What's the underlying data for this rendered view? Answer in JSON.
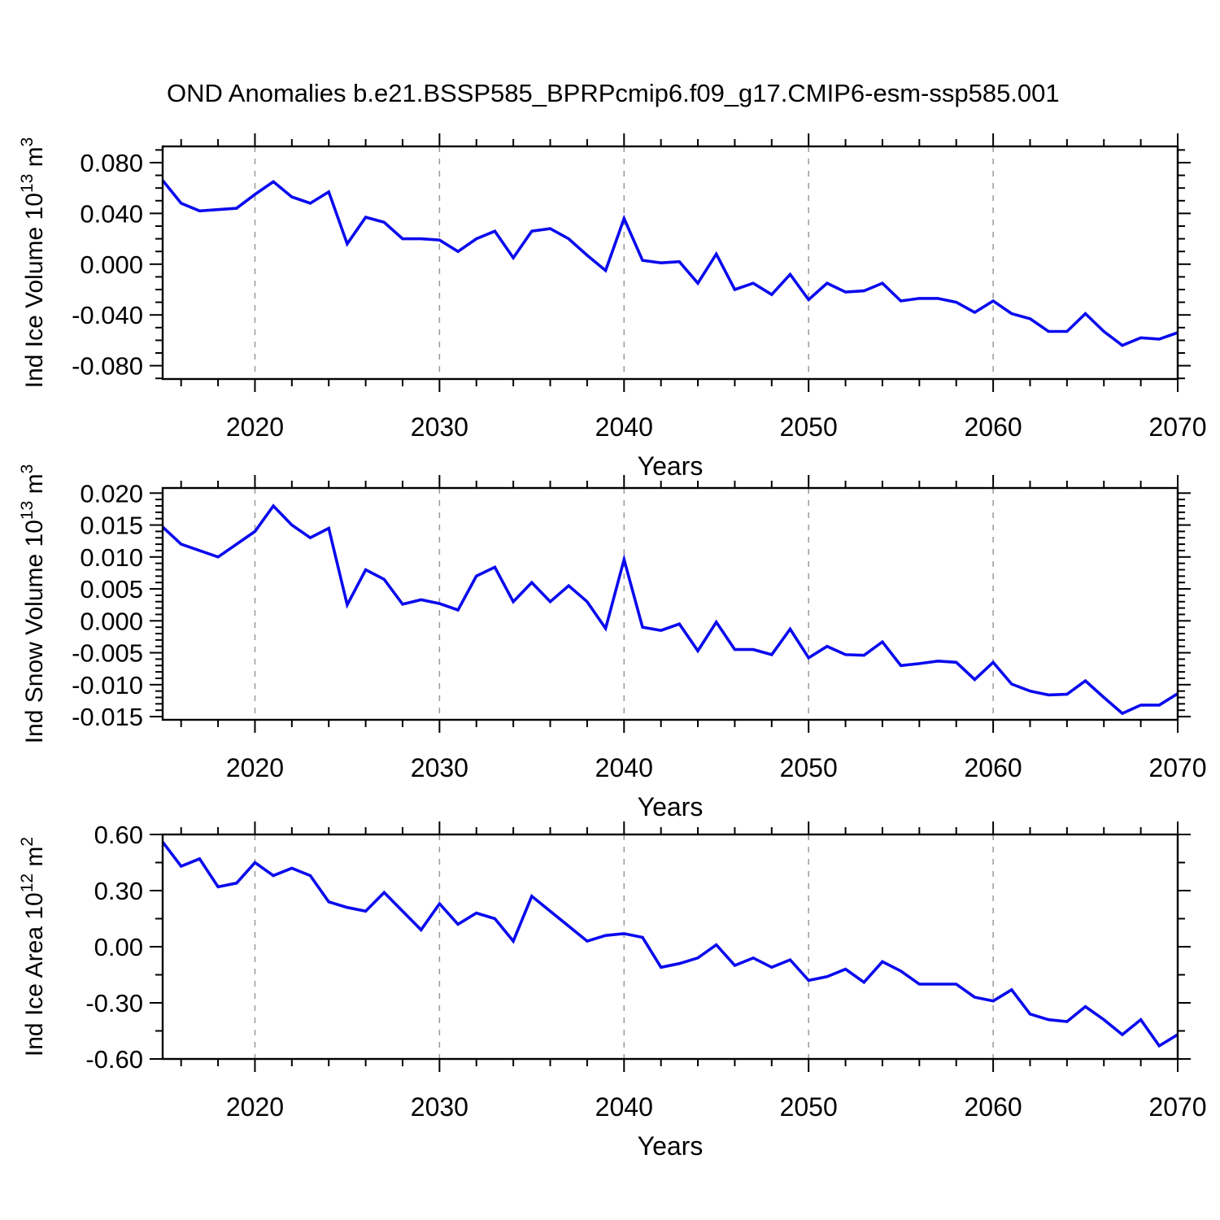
{
  "title": "OND Anomalies b.e21.BSSP585_BPRPcmip6.f09_g17.CMIP6-esm-ssp585.001",
  "colors": {
    "line": "#0a0aee",
    "grid": "#999999",
    "axis": "#000000",
    "background": "#ffffff"
  },
  "x_axis": {
    "label": "Years",
    "start": 2015,
    "end": 2070,
    "major_ticks": [
      2020,
      2030,
      2040,
      2050,
      2060,
      2070
    ],
    "minor_step_years": 2,
    "gridline_years": [
      2020,
      2030,
      2040,
      2050,
      2060
    ]
  },
  "years": [
    2015,
    2016,
    2017,
    2018,
    2019,
    2020,
    2021,
    2022,
    2023,
    2024,
    2025,
    2026,
    2027,
    2028,
    2029,
    2030,
    2031,
    2032,
    2033,
    2034,
    2035,
    2036,
    2037,
    2038,
    2039,
    2040,
    2041,
    2042,
    2043,
    2044,
    2045,
    2046,
    2047,
    2048,
    2049,
    2050,
    2051,
    2052,
    2053,
    2054,
    2055,
    2056,
    2057,
    2058,
    2059,
    2060,
    2061,
    2062,
    2063,
    2064,
    2065,
    2066,
    2067,
    2068,
    2069,
    2070
  ],
  "chart_data": [
    {
      "type": "line",
      "name": "ind-ice-volume",
      "ylabel_parts": [
        [
          "Ind Ice Volume 10",
          false
        ],
        [
          "13",
          true
        ],
        [
          " m",
          false
        ],
        [
          "3",
          true
        ]
      ],
      "xlabel": "Years",
      "ylim": [
        -0.0905,
        0.0928
      ],
      "yticks": [
        [
          0.08,
          "0.080"
        ],
        [
          0.04,
          "0.040"
        ],
        [
          0.0,
          "0.000"
        ],
        [
          -0.04,
          "-0.040"
        ],
        [
          -0.08,
          "-0.080"
        ]
      ],
      "y_minor_step": 0.01,
      "grid": "vertical-dashed",
      "legend": "none",
      "values": [
        0.066,
        0.048,
        0.042,
        0.043,
        0.044,
        0.055,
        0.065,
        0.053,
        0.048,
        0.057,
        0.016,
        0.037,
        0.033,
        0.02,
        0.02,
        0.019,
        0.01,
        0.02,
        0.026,
        0.005,
        0.026,
        0.028,
        0.02,
        0.007,
        -0.005,
        0.036,
        0.003,
        0.001,
        0.002,
        -0.015,
        0.008,
        -0.02,
        -0.015,
        -0.024,
        -0.008,
        -0.028,
        -0.015,
        -0.022,
        -0.021,
        -0.015,
        -0.029,
        -0.027,
        -0.027,
        -0.03,
        -0.038,
        -0.029,
        -0.039,
        -0.043,
        -0.053,
        -0.053,
        -0.039,
        -0.053,
        -0.064,
        -0.058,
        -0.059,
        -0.054
      ]
    },
    {
      "type": "line",
      "name": "ind-snow-volume",
      "ylabel_parts": [
        [
          "Ind Snow Volume 10",
          false
        ],
        [
          "13",
          true
        ],
        [
          " m",
          false
        ],
        [
          "3",
          true
        ]
      ],
      "xlabel": "Years",
      "ylim": [
        -0.0155,
        0.0208
      ],
      "yticks": [
        [
          0.02,
          "0.020"
        ],
        [
          0.015,
          "0.015"
        ],
        [
          0.01,
          "0.010"
        ],
        [
          0.005,
          "0.005"
        ],
        [
          0.0,
          "0.000"
        ],
        [
          -0.005,
          "-0.005"
        ],
        [
          -0.01,
          "-0.010"
        ],
        [
          -0.015,
          "-0.015"
        ]
      ],
      "y_minor_step": 0.001,
      "grid": "vertical-dashed",
      "legend": "none",
      "values": [
        0.0147,
        0.012,
        0.011,
        0.01,
        0.012,
        0.014,
        0.018,
        0.015,
        0.013,
        0.0145,
        0.0025,
        0.008,
        0.0065,
        0.0026,
        0.0033,
        0.0027,
        0.0017,
        0.007,
        0.0084,
        0.003,
        0.006,
        0.003,
        0.0055,
        0.003,
        -0.0012,
        0.0096,
        -0.001,
        -0.0015,
        -0.0005,
        -0.0047,
        -0.0002,
        -0.0045,
        -0.0045,
        -0.0053,
        -0.0013,
        -0.0058,
        -0.004,
        -0.0053,
        -0.0054,
        -0.0033,
        -0.007,
        -0.0067,
        -0.0063,
        -0.0065,
        -0.0092,
        -0.0065,
        -0.0099,
        -0.011,
        -0.0116,
        -0.0115,
        -0.0094,
        -0.012,
        -0.0145,
        -0.0132,
        -0.0132,
        -0.0114
      ]
    },
    {
      "type": "line",
      "name": "ind-ice-area",
      "ylabel_parts": [
        [
          "Ind Ice Area 10",
          false
        ],
        [
          "12",
          true
        ],
        [
          " m",
          false
        ],
        [
          "2",
          true
        ]
      ],
      "xlabel": "Years",
      "ylim": [
        -0.6,
        0.6
      ],
      "yticks": [
        [
          0.6,
          "0.60"
        ],
        [
          0.3,
          "0.30"
        ],
        [
          0.0,
          "0.00"
        ],
        [
          -0.3,
          "-0.30"
        ],
        [
          -0.6,
          "-0.60"
        ]
      ],
      "y_minor_step": 0.15,
      "grid": "vertical-dashed",
      "legend": "none",
      "values": [
        0.56,
        0.43,
        0.47,
        0.32,
        0.34,
        0.45,
        0.38,
        0.42,
        0.38,
        0.24,
        0.21,
        0.19,
        0.29,
        0.19,
        0.09,
        0.23,
        0.12,
        0.18,
        0.15,
        0.03,
        0.27,
        0.19,
        0.11,
        0.03,
        0.06,
        0.07,
        0.05,
        -0.11,
        -0.09,
        -0.06,
        0.01,
        -0.1,
        -0.06,
        -0.11,
        -0.07,
        -0.18,
        -0.16,
        -0.12,
        -0.19,
        -0.08,
        -0.13,
        -0.2,
        -0.2,
        -0.2,
        -0.27,
        -0.29,
        -0.23,
        -0.36,
        -0.39,
        -0.4,
        -0.32,
        -0.39,
        -0.47,
        -0.39,
        -0.53,
        -0.47
      ]
    }
  ]
}
